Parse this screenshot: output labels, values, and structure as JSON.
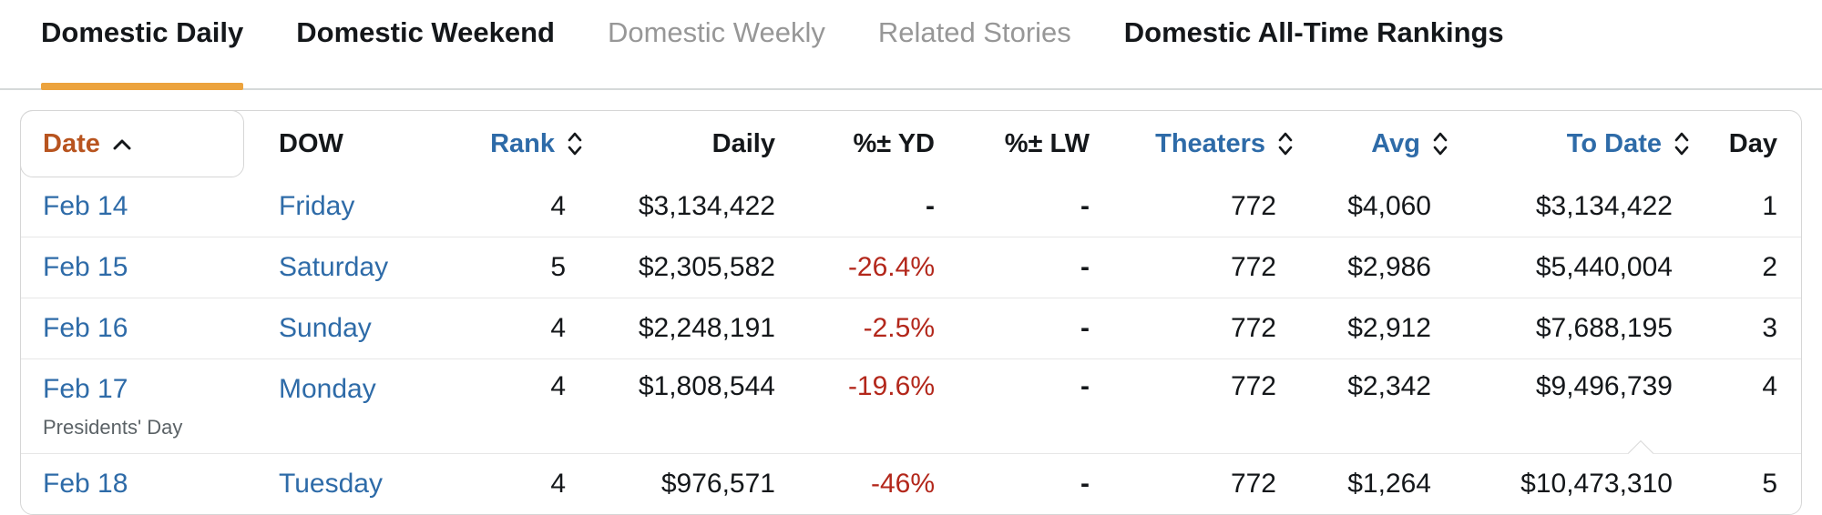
{
  "tabs": [
    {
      "label": "Domestic Daily",
      "state": "active"
    },
    {
      "label": "Domestic Weekend",
      "state": "normal"
    },
    {
      "label": "Domestic Weekly",
      "state": "muted"
    },
    {
      "label": "Related Stories",
      "state": "muted"
    },
    {
      "label": "Domestic All-Time Rankings",
      "state": "normal"
    }
  ],
  "colors": {
    "active_tab_underline": "#ECA33D",
    "sorted_column_header": "#B8541F",
    "sortable_header_link": "#2E6BA8",
    "row_link": "#2E6BA8",
    "negative_percent": "#B3271B"
  },
  "icons": {
    "date_sort": "sort-ascending-chevron",
    "sortable": "sort-toggle-chevrons"
  },
  "table": {
    "columns": [
      {
        "key": "date",
        "label": "Date",
        "sorted": "asc",
        "align": "left"
      },
      {
        "key": "dow",
        "label": "DOW",
        "sorted": "none",
        "align": "left"
      },
      {
        "key": "rank",
        "label": "Rank",
        "sortable": true,
        "align": "right"
      },
      {
        "key": "daily",
        "label": "Daily",
        "sorted": "none",
        "align": "right"
      },
      {
        "key": "yd",
        "label": "%± YD",
        "sorted": "none",
        "align": "right"
      },
      {
        "key": "lw",
        "label": "%± LW",
        "sorted": "none",
        "align": "right"
      },
      {
        "key": "theaters",
        "label": "Theaters",
        "sortable": true,
        "align": "right"
      },
      {
        "key": "avg",
        "label": "Avg",
        "sortable": true,
        "align": "right"
      },
      {
        "key": "todate",
        "label": "To Date",
        "sortable": true,
        "align": "right"
      },
      {
        "key": "day",
        "label": "Day",
        "sorted": "none",
        "align": "right"
      }
    ],
    "rows": [
      {
        "date": "Feb 14",
        "note": "",
        "dow": "Friday",
        "rank": "4",
        "daily": "$3,134,422",
        "yd": "-",
        "lw": "-",
        "theaters": "772",
        "avg": "$4,060",
        "todate": "$3,134,422",
        "day": "1"
      },
      {
        "date": "Feb 15",
        "note": "",
        "dow": "Saturday",
        "rank": "5",
        "daily": "$2,305,582",
        "yd": "-26.4%",
        "lw": "-",
        "theaters": "772",
        "avg": "$2,986",
        "todate": "$5,440,004",
        "day": "2"
      },
      {
        "date": "Feb 16",
        "note": "",
        "dow": "Sunday",
        "rank": "4",
        "daily": "$2,248,191",
        "yd": "-2.5%",
        "lw": "-",
        "theaters": "772",
        "avg": "$2,912",
        "todate": "$7,688,195",
        "day": "3"
      },
      {
        "date": "Feb 17",
        "note": "Presidents' Day",
        "dow": "Monday",
        "rank": "4",
        "daily": "$1,808,544",
        "yd": "-19.6%",
        "lw": "-",
        "theaters": "772",
        "avg": "$2,342",
        "todate": "$9,496,739",
        "day": "4"
      },
      {
        "date": "Feb 18",
        "note": "",
        "dow": "Tuesday",
        "rank": "4",
        "daily": "$976,571",
        "yd": "-46%",
        "lw": "-",
        "theaters": "772",
        "avg": "$1,264",
        "todate": "$10,473,310",
        "day": "5"
      }
    ]
  }
}
